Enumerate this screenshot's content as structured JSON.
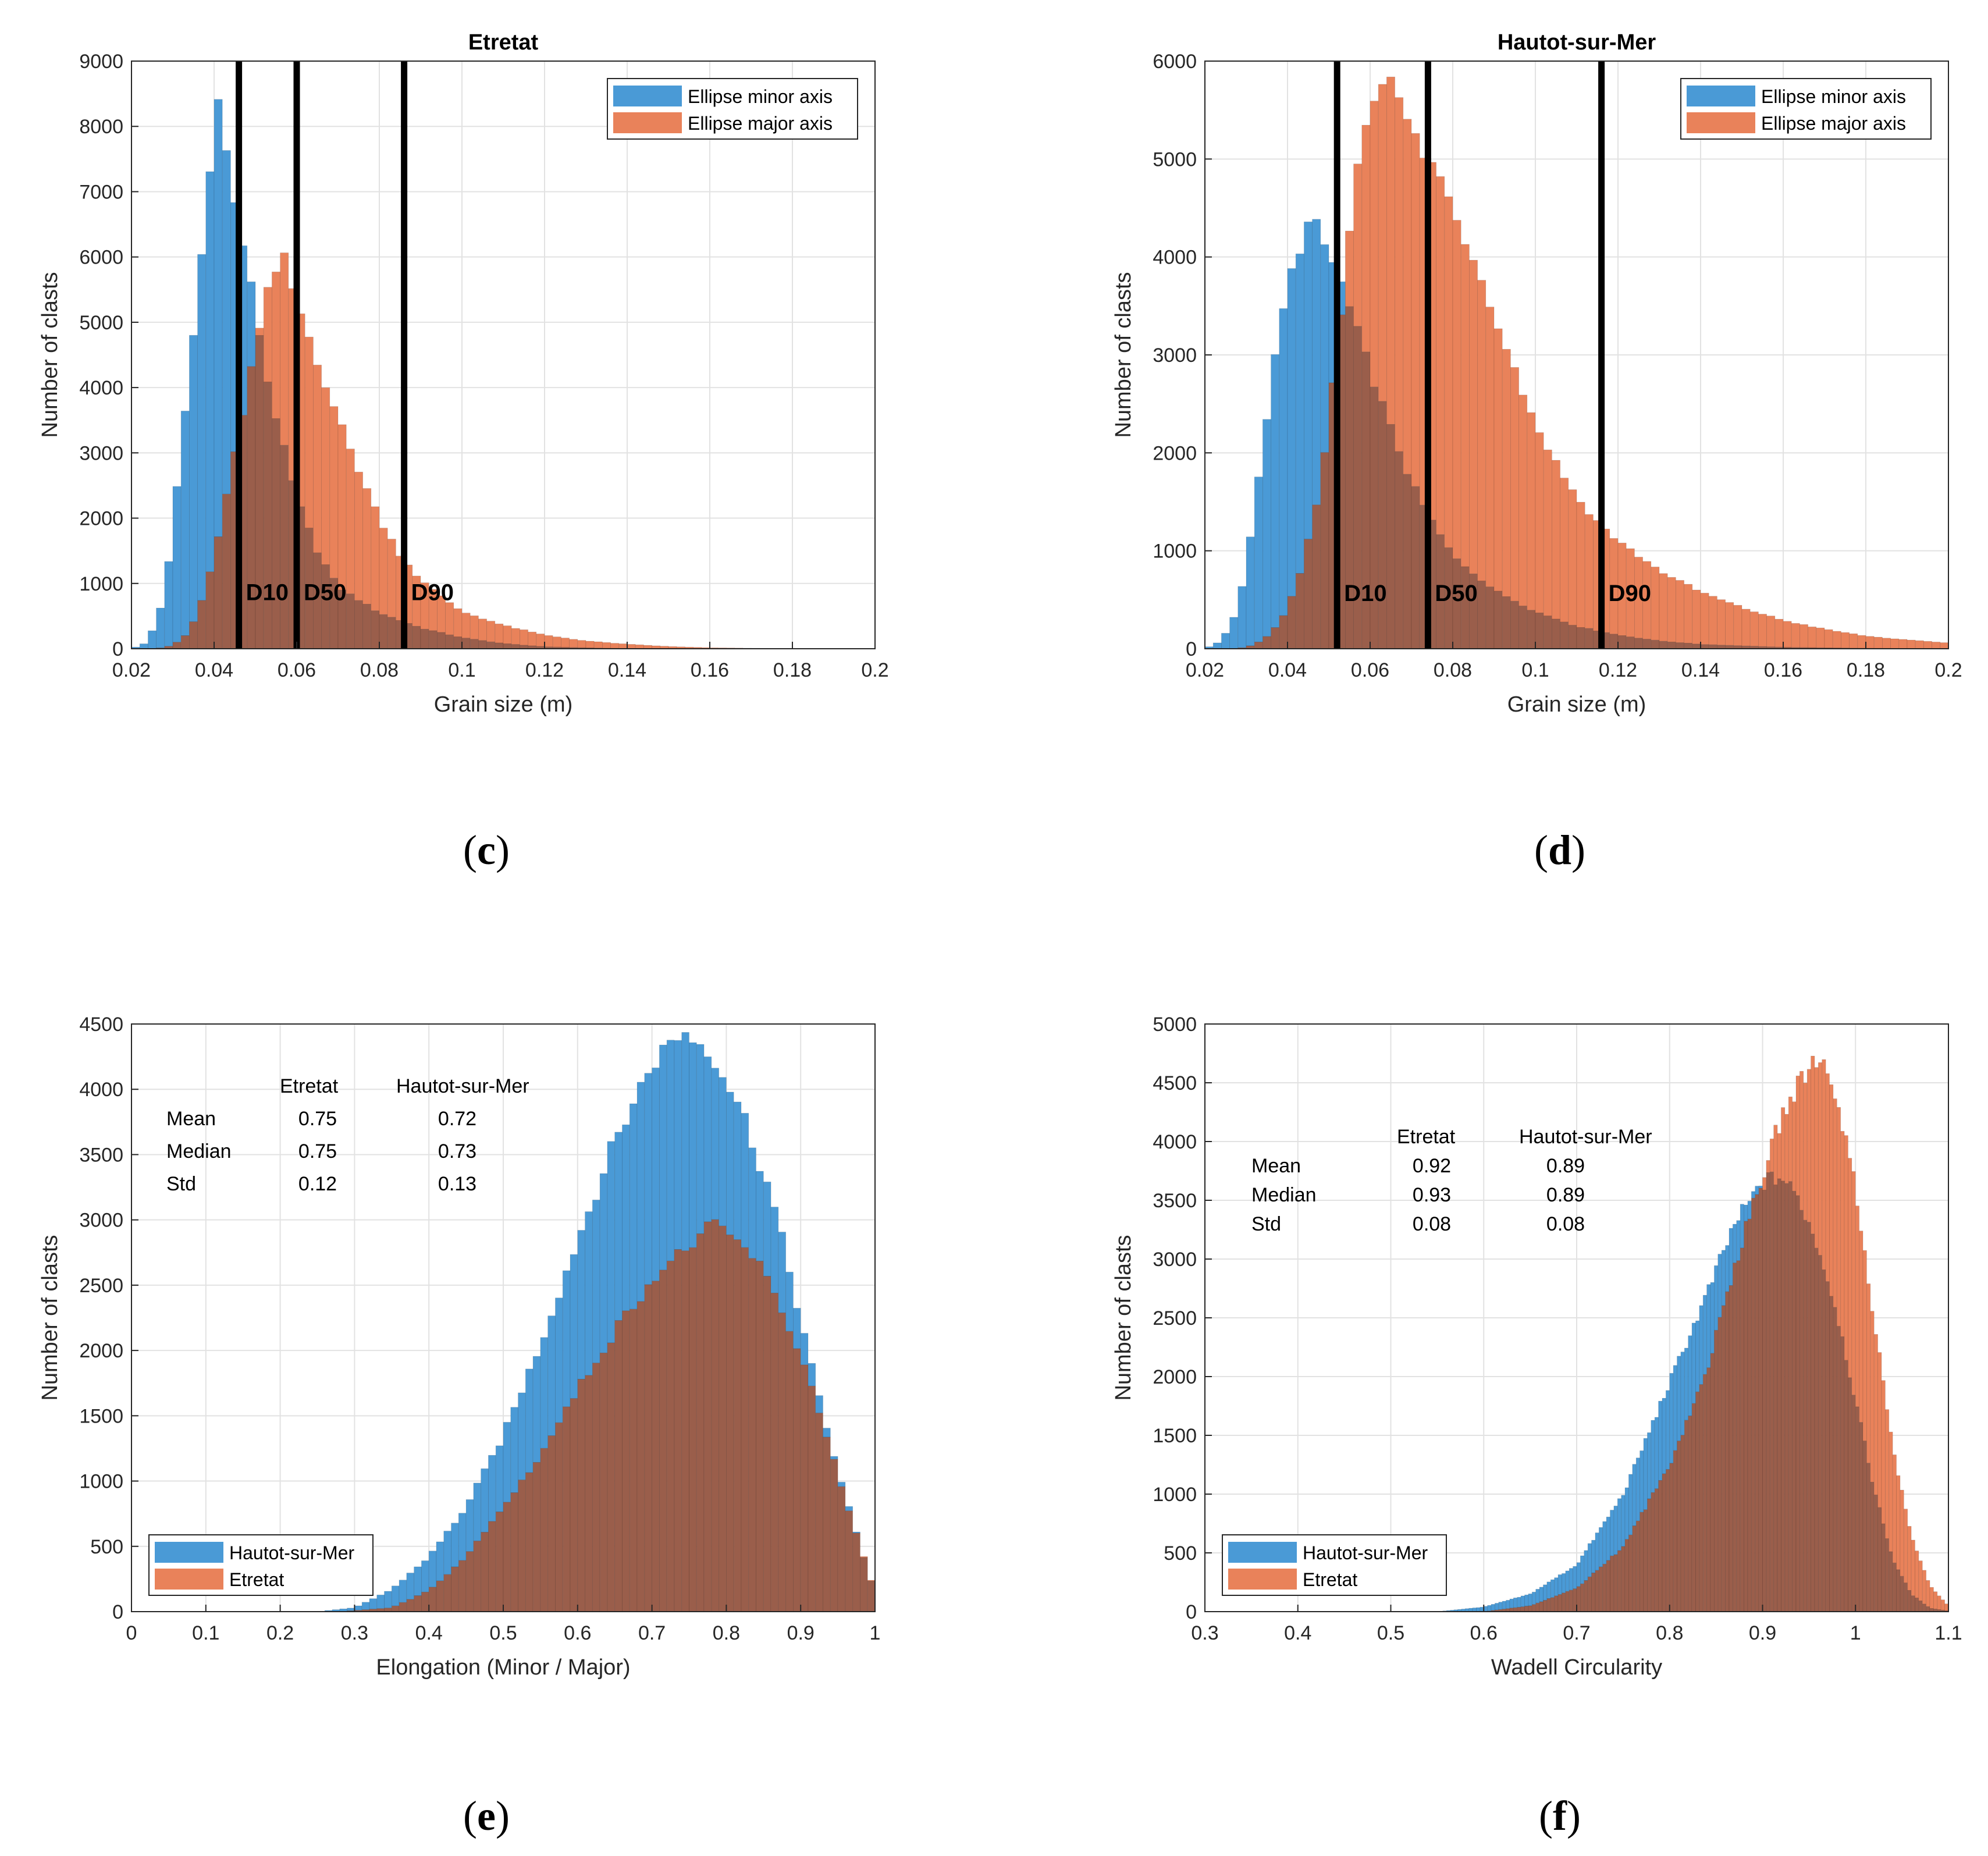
{
  "colors": {
    "blue": "#4a9ad6",
    "orange": "#e9825a",
    "overlap": "#9a5e4b",
    "marker": "#000000"
  },
  "captions": {
    "c": "c",
    "d": "d",
    "e": "e",
    "f": "f"
  },
  "chart_data": [
    {
      "type": "histogram",
      "panel": "c",
      "title": "Etretat",
      "xlabel": "Grain size (m)",
      "ylabel": "Number of clasts",
      "xlim": [
        0.02,
        0.2
      ],
      "ylim": [
        0,
        9000
      ],
      "xticks": [
        0.02,
        0.04,
        0.06,
        0.08,
        0.1,
        0.12,
        0.14,
        0.16,
        0.18,
        0.2
      ],
      "xtick_labels": [
        "0.02",
        "0.04",
        "0.06",
        "0.08",
        "0.1",
        "0.12",
        "0.14",
        "0.16",
        "0.18",
        "0.2"
      ],
      "yticks": [
        0,
        1000,
        2000,
        3000,
        4000,
        5000,
        6000,
        7000,
        8000,
        9000
      ],
      "ytick_labels": [
        "0",
        "1000",
        "2000",
        "3000",
        "4000",
        "5000",
        "6000",
        "7000",
        "8000",
        "9000"
      ],
      "grid": true,
      "legend_position": "top-right",
      "bin_width": 0.002,
      "series": [
        {
          "name": "Ellipse minor axis",
          "color": "blue",
          "curve": [
            [
              0.02,
              0
            ],
            [
              0.024,
              100
            ],
            [
              0.028,
              800
            ],
            [
              0.032,
              3000
            ],
            [
              0.036,
              5400
            ],
            [
              0.039,
              7300
            ],
            [
              0.041,
              8600
            ],
            [
              0.043,
              7600
            ],
            [
              0.045,
              6800
            ],
            [
              0.047,
              6200
            ],
            [
              0.05,
              5200
            ],
            [
              0.053,
              4100
            ],
            [
              0.056,
              3300
            ],
            [
              0.06,
              2300
            ],
            [
              0.065,
              1500
            ],
            [
              0.07,
              950
            ],
            [
              0.08,
              550
            ],
            [
              0.09,
              320
            ],
            [
              0.1,
              170
            ],
            [
              0.11,
              80
            ],
            [
              0.12,
              30
            ],
            [
              0.135,
              8
            ],
            [
              0.15,
              0
            ]
          ]
        },
        {
          "name": "Ellipse major axis",
          "color": "orange",
          "curve": [
            [
              0.026,
              0
            ],
            [
              0.03,
              50
            ],
            [
              0.034,
              250
            ],
            [
              0.038,
              900
            ],
            [
              0.042,
              2000
            ],
            [
              0.046,
              3300
            ],
            [
              0.05,
              4600
            ],
            [
              0.054,
              5700
            ],
            [
              0.057,
              5950
            ],
            [
              0.06,
              5300
            ],
            [
              0.064,
              4600
            ],
            [
              0.068,
              3900
            ],
            [
              0.072,
              3200
            ],
            [
              0.076,
              2600
            ],
            [
              0.08,
              2000
            ],
            [
              0.085,
              1450
            ],
            [
              0.09,
              1050
            ],
            [
              0.095,
              800
            ],
            [
              0.1,
              570
            ],
            [
              0.11,
              360
            ],
            [
              0.12,
              210
            ],
            [
              0.13,
              120
            ],
            [
              0.14,
              70
            ],
            [
              0.15,
              35
            ],
            [
              0.16,
              15
            ],
            [
              0.175,
              5
            ],
            [
              0.19,
              0
            ]
          ]
        }
      ],
      "markers": [
        {
          "label": "D10",
          "x": 0.046
        },
        {
          "label": "D50",
          "x": 0.06
        },
        {
          "label": "D90",
          "x": 0.086
        }
      ],
      "marker_label_y": 870
    },
    {
      "type": "histogram",
      "panel": "d",
      "title": "Hautot-sur-Mer",
      "xlabel": "Grain size (m)",
      "ylabel": "Number of clasts",
      "xlim": [
        0.02,
        0.2
      ],
      "ylim": [
        0,
        6000
      ],
      "xticks": [
        0.02,
        0.04,
        0.06,
        0.08,
        0.1,
        0.12,
        0.14,
        0.16,
        0.18,
        0.2
      ],
      "xtick_labels": [
        "0.02",
        "0.04",
        "0.06",
        "0.08",
        "0.1",
        "0.12",
        "0.14",
        "0.16",
        "0.18",
        "0.2"
      ],
      "yticks": [
        0,
        1000,
        2000,
        3000,
        4000,
        5000,
        6000
      ],
      "ytick_labels": [
        "0",
        "1000",
        "2000",
        "3000",
        "4000",
        "5000",
        "6000"
      ],
      "grid": true,
      "legend_position": "top-right",
      "bin_width": 0.002,
      "series": [
        {
          "name": "Ellipse minor axis",
          "color": "blue",
          "curve": [
            [
              0.02,
              0
            ],
            [
              0.024,
              80
            ],
            [
              0.028,
              400
            ],
            [
              0.032,
              1400
            ],
            [
              0.036,
              2700
            ],
            [
              0.04,
              3700
            ],
            [
              0.044,
              4250
            ],
            [
              0.046,
              4400
            ],
            [
              0.048,
              4200
            ],
            [
              0.052,
              3850
            ],
            [
              0.056,
              3350
            ],
            [
              0.06,
              2850
            ],
            [
              0.065,
              2250
            ],
            [
              0.07,
              1700
            ],
            [
              0.075,
              1300
            ],
            [
              0.08,
              950
            ],
            [
              0.09,
              600
            ],
            [
              0.1,
              380
            ],
            [
              0.11,
              230
            ],
            [
              0.12,
              140
            ],
            [
              0.13,
              80
            ],
            [
              0.14,
              45
            ],
            [
              0.16,
              15
            ],
            [
              0.18,
              5
            ],
            [
              0.2,
              2
            ]
          ]
        },
        {
          "name": "Ellipse major axis",
          "color": "orange",
          "curve": [
            [
              0.028,
              0
            ],
            [
              0.032,
              40
            ],
            [
              0.036,
              150
            ],
            [
              0.04,
              400
            ],
            [
              0.044,
              900
            ],
            [
              0.048,
              1700
            ],
            [
              0.052,
              3000
            ],
            [
              0.055,
              4300
            ],
            [
              0.058,
              5300
            ],
            [
              0.061,
              5700
            ],
            [
              0.064,
              5850
            ],
            [
              0.068,
              5500
            ],
            [
              0.072,
              5100
            ],
            [
              0.076,
              4900
            ],
            [
              0.08,
              4500
            ],
            [
              0.085,
              4000
            ],
            [
              0.09,
              3450
            ],
            [
              0.095,
              2850
            ],
            [
              0.1,
              2300
            ],
            [
              0.105,
              1900
            ],
            [
              0.11,
              1550
            ],
            [
              0.115,
              1300
            ],
            [
              0.12,
              1100
            ],
            [
              0.13,
              800
            ],
            [
              0.14,
              580
            ],
            [
              0.15,
              420
            ],
            [
              0.16,
              290
            ],
            [
              0.17,
              200
            ],
            [
              0.18,
              130
            ],
            [
              0.19,
              90
            ],
            [
              0.2,
              60
            ]
          ]
        }
      ],
      "markers": [
        {
          "label": "D10",
          "x": 0.052
        },
        {
          "label": "D50",
          "x": 0.074
        },
        {
          "label": "D90",
          "x": 0.116
        }
      ],
      "marker_label_y": 570
    },
    {
      "type": "histogram",
      "panel": "e",
      "title": "",
      "xlabel": "Elongation (Minor / Major)",
      "ylabel": "Number of clasts",
      "xlim": [
        0,
        1
      ],
      "ylim": [
        0,
        4500
      ],
      "xticks": [
        0,
        0.1,
        0.2,
        0.3,
        0.4,
        0.5,
        0.6,
        0.7,
        0.8,
        0.9,
        1
      ],
      "xtick_labels": [
        "0",
        "0.1",
        "0.2",
        "0.3",
        "0.4",
        "0.5",
        "0.6",
        "0.7",
        "0.8",
        "0.9",
        "1"
      ],
      "yticks": [
        0,
        500,
        1000,
        1500,
        2000,
        2500,
        3000,
        3500,
        4000,
        4500
      ],
      "ytick_labels": [
        "0",
        "500",
        "1000",
        "1500",
        "2000",
        "2500",
        "3000",
        "3500",
        "4000",
        "4500"
      ],
      "grid": true,
      "legend_position": "bottom-left",
      "bin_width": 0.01,
      "series": [
        {
          "name": "Hautot-sur-Mer",
          "color": "blue",
          "curve": [
            [
              0.25,
              0
            ],
            [
              0.3,
              30
            ],
            [
              0.35,
              170
            ],
            [
              0.4,
              420
            ],
            [
              0.45,
              800
            ],
            [
              0.5,
              1350
            ],
            [
              0.55,
              2050
            ],
            [
              0.6,
              2850
            ],
            [
              0.65,
              3600
            ],
            [
              0.7,
              4200
            ],
            [
              0.74,
              4450
            ],
            [
              0.78,
              4300
            ],
            [
              0.82,
              3850
            ],
            [
              0.86,
              3200
            ],
            [
              0.9,
              2250
            ],
            [
              0.93,
              1500
            ],
            [
              0.96,
              900
            ],
            [
              0.98,
              500
            ],
            [
              1.0,
              150
            ]
          ]
        },
        {
          "name": "Etretat",
          "color": "orange",
          "curve": [
            [
              0.28,
              0
            ],
            [
              0.35,
              30
            ],
            [
              0.4,
              160
            ],
            [
              0.45,
              420
            ],
            [
              0.5,
              800
            ],
            [
              0.55,
              1200
            ],
            [
              0.6,
              1700
            ],
            [
              0.65,
              2150
            ],
            [
              0.7,
              2550
            ],
            [
              0.75,
              2800
            ],
            [
              0.78,
              2950
            ],
            [
              0.8,
              2900
            ],
            [
              0.84,
              2700
            ],
            [
              0.88,
              2250
            ],
            [
              0.92,
              1650
            ],
            [
              0.95,
              1050
            ],
            [
              0.98,
              500
            ],
            [
              1.0,
              150
            ]
          ]
        }
      ],
      "stats": {
        "columns": [
          "",
          "Etretat",
          "Hautot-sur-Mer"
        ],
        "rows": [
          [
            "Mean",
            "0.75",
            "0.72"
          ],
          [
            "Median",
            "0.75",
            "0.73"
          ],
          [
            "Std",
            "0.12",
            "0.13"
          ]
        ]
      }
    },
    {
      "type": "histogram",
      "panel": "f",
      "title": "",
      "xlabel": "Wadell Circularity",
      "ylabel": "Number of clasts",
      "xlim": [
        0.3,
        1.1
      ],
      "ylim": [
        0,
        5000
      ],
      "xticks": [
        0.3,
        0.4,
        0.5,
        0.6,
        0.7,
        0.8,
        0.9,
        1,
        1.1
      ],
      "xtick_labels": [
        "0.3",
        "0.4",
        "0.5",
        "0.6",
        "0.7",
        "0.8",
        "0.9",
        "1",
        "1.1"
      ],
      "yticks": [
        0,
        500,
        1000,
        1500,
        2000,
        2500,
        3000,
        3500,
        4000,
        4500,
        5000
      ],
      "ytick_labels": [
        "0",
        "500",
        "1000",
        "1500",
        "2000",
        "2500",
        "3000",
        "3500",
        "4000",
        "4500",
        "5000"
      ],
      "grid": true,
      "legend_position": "bottom-left",
      "bin_width": 0.004,
      "series": [
        {
          "name": "Hautot-sur-Mer",
          "color": "blue",
          "curve": [
            [
              0.55,
              0
            ],
            [
              0.6,
              40
            ],
            [
              0.65,
              150
            ],
            [
              0.7,
              400
            ],
            [
              0.75,
              1000
            ],
            [
              0.8,
              1950
            ],
            [
              0.84,
              2700
            ],
            [
              0.87,
              3300
            ],
            [
              0.9,
              3650
            ],
            [
              0.92,
              3700
            ],
            [
              0.94,
              3500
            ],
            [
              0.96,
              3100
            ],
            [
              0.98,
              2550
            ],
            [
              1.0,
              1800
            ],
            [
              1.02,
              1050
            ],
            [
              1.04,
              450
            ],
            [
              1.06,
              150
            ],
            [
              1.08,
              30
            ],
            [
              1.1,
              5
            ]
          ]
        },
        {
          "name": "Etretat",
          "color": "orange",
          "curve": [
            [
              0.6,
              0
            ],
            [
              0.65,
              50
            ],
            [
              0.7,
              200
            ],
            [
              0.75,
              550
            ],
            [
              0.8,
              1250
            ],
            [
              0.84,
              2050
            ],
            [
              0.87,
              2950
            ],
            [
              0.9,
              3700
            ],
            [
              0.92,
              4200
            ],
            [
              0.94,
              4500
            ],
            [
              0.96,
              4750
            ],
            [
              0.98,
              4400
            ],
            [
              1.0,
              3600
            ],
            [
              1.02,
              2500
            ],
            [
              1.04,
              1400
            ],
            [
              1.06,
              650
            ],
            [
              1.08,
              220
            ],
            [
              1.1,
              50
            ]
          ]
        }
      ],
      "stats": {
        "columns": [
          "",
          "Etretat",
          "Hautot-sur-Mer"
        ],
        "rows": [
          [
            "Mean",
            "0.92",
            "0.89"
          ],
          [
            "Median",
            "0.93",
            "0.89"
          ],
          [
            "Std",
            "0.08",
            "0.08"
          ]
        ]
      }
    }
  ]
}
